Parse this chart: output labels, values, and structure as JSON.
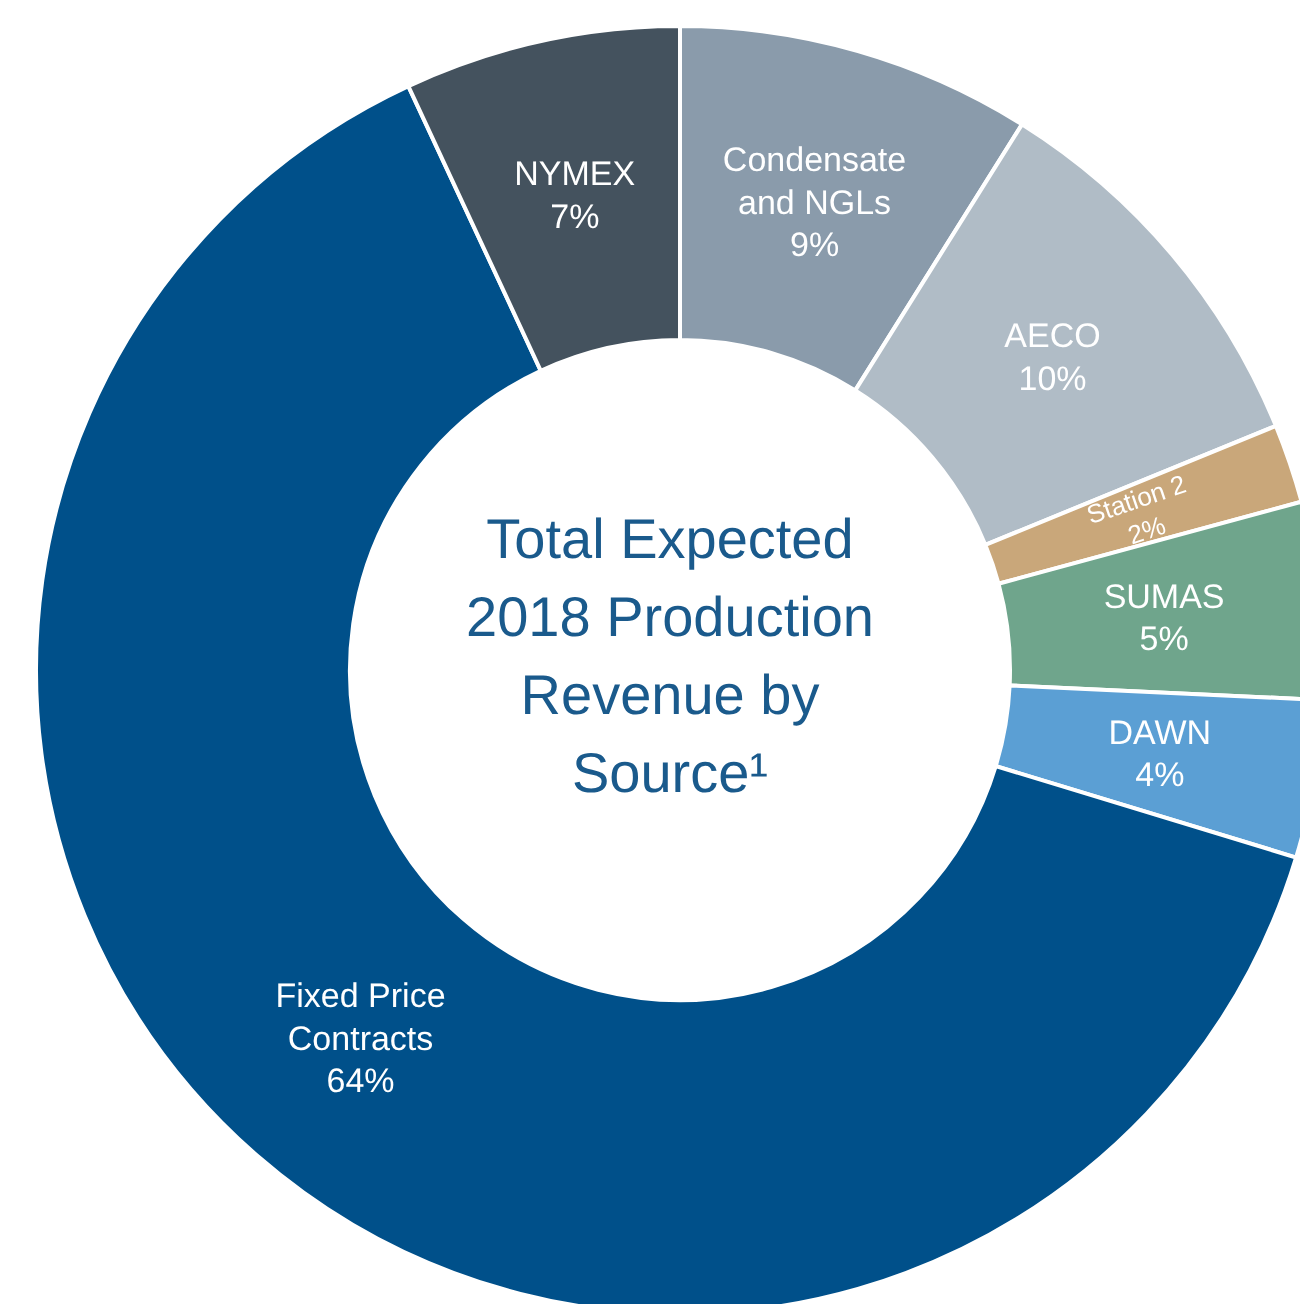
{
  "chart_data": {
    "type": "donut",
    "title": "Total Expected 2018 Production Revenue by Source¹",
    "categories": [
      "Condensate and NGLs",
      "AECO",
      "Station 2",
      "SUMAS",
      "DAWN",
      "Fixed Price Contracts",
      "NYMEX"
    ],
    "values": [
      9,
      10,
      2,
      5,
      4,
      64,
      7
    ],
    "value_labels": [
      "9%",
      "10%",
      "2%",
      "5%",
      "4%",
      "64%",
      "7%"
    ],
    "colors": [
      "#8a9bab",
      "#b0bcc6",
      "#c9a77a",
      "#6fa58c",
      "#5b9fd4",
      "#00508a",
      "#44525e"
    ],
    "legend": false
  }
}
